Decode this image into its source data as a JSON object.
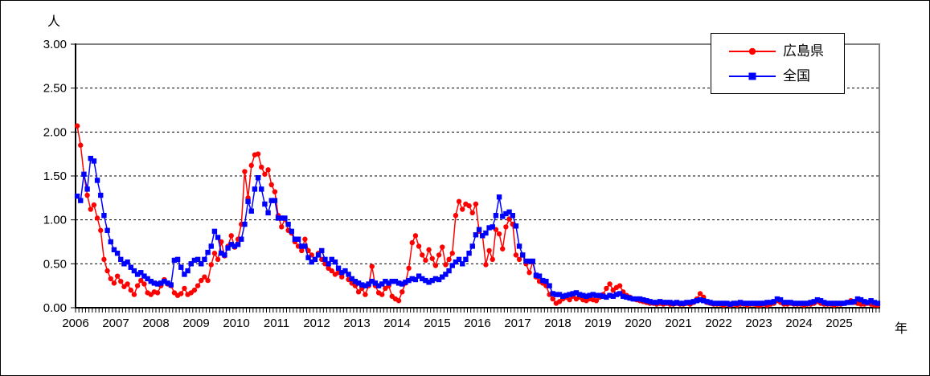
{
  "chart_data": {
    "type": "line",
    "title": "",
    "ylabel": "人",
    "xlabel": "年",
    "ylim": [
      0,
      3.0
    ],
    "y_tick_labels": [
      "0.00",
      "0.50",
      "1.00",
      "1.50",
      "2.00",
      "2.50",
      "3.00"
    ],
    "y_tick_values": [
      0,
      0.5,
      1.0,
      1.5,
      2.0,
      2.5,
      3.0
    ],
    "grid": "horizontal-dashed",
    "grid_values": [
      0.5,
      1.0,
      1.5,
      2.0,
      2.5
    ],
    "legend_position": "top-right",
    "x_tick_years": [
      "2006",
      "2007",
      "2008",
      "2009",
      "2010",
      "2011",
      "2012",
      "2013",
      "2014",
      "2015",
      "2016",
      "2017",
      "2018",
      "2019",
      "2020",
      "2021",
      "2022",
      "2023",
      "2024",
      "2025"
    ],
    "x_minor_ticks_per_year": 12,
    "frame_color": "#808080",
    "axis_color": "#000000",
    "series": [
      {
        "name": "広島県",
        "color": "#ff0000",
        "marker": "circle",
        "values": [
          2.07,
          1.85,
          1.52,
          1.28,
          1.12,
          1.17,
          1.02,
          0.88,
          0.55,
          0.42,
          0.33,
          0.28,
          0.36,
          0.3,
          0.24,
          0.27,
          0.2,
          0.15,
          0.25,
          0.31,
          0.27,
          0.17,
          0.15,
          0.18,
          0.17,
          0.25,
          0.32,
          0.27,
          0.25,
          0.17,
          0.14,
          0.16,
          0.22,
          0.15,
          0.17,
          0.2,
          0.25,
          0.31,
          0.35,
          0.31,
          0.49,
          0.62,
          0.55,
          0.75,
          0.59,
          0.7,
          0.82,
          0.69,
          0.78,
          0.95,
          1.55,
          1.25,
          1.62,
          1.74,
          1.75,
          1.6,
          1.52,
          1.57,
          1.4,
          1.32,
          1.05,
          0.92,
          1.01,
          0.88,
          0.85,
          0.75,
          0.7,
          0.65,
          0.78,
          0.65,
          0.6,
          0.55,
          0.62,
          0.55,
          0.5,
          0.45,
          0.42,
          0.38,
          0.4,
          0.35,
          0.42,
          0.32,
          0.28,
          0.25,
          0.18,
          0.22,
          0.15,
          0.25,
          0.47,
          0.25,
          0.17,
          0.15,
          0.22,
          0.25,
          0.13,
          0.1,
          0.08,
          0.18,
          0.28,
          0.45,
          0.74,
          0.82,
          0.7,
          0.6,
          0.54,
          0.66,
          0.56,
          0.48,
          0.6,
          0.69,
          0.49,
          0.55,
          0.62,
          1.05,
          1.21,
          1.12,
          1.18,
          1.16,
          1.08,
          1.18,
          0.87,
          0.82,
          0.49,
          0.65,
          0.55,
          0.89,
          0.84,
          0.67,
          0.92,
          1.01,
          0.95,
          0.6,
          0.55,
          0.6,
          0.5,
          0.4,
          0.52,
          0.35,
          0.3,
          0.28,
          0.25,
          0.15,
          0.1,
          0.05,
          0.07,
          0.1,
          0.12,
          0.09,
          0.13,
          0.1,
          0.12,
          0.09,
          0.08,
          0.1,
          0.09,
          0.08,
          0.12,
          0.15,
          0.22,
          0.27,
          0.2,
          0.23,
          0.25,
          0.18,
          0.14,
          0.12,
          0.1,
          0.09,
          0.08,
          0.07,
          0.06,
          0.05,
          0.05,
          0.04,
          0.05,
          0.04,
          0.05,
          0.04,
          0.04,
          0.05,
          0.04,
          0.04,
          0.05,
          0.04,
          0.06,
          0.1,
          0.16,
          0.12,
          0.06,
          0.05,
          0.04,
          0.04,
          0.04,
          0.03,
          0.04,
          0.03,
          0.04,
          0.03,
          0.04,
          0.04,
          0.03,
          0.04,
          0.04,
          0.03,
          0.03,
          0.04,
          0.03,
          0.04,
          0.05,
          0.08,
          0.06,
          0.04,
          0.04,
          0.05,
          0.04,
          0.04,
          0.04,
          0.03,
          0.04,
          0.04,
          0.05,
          0.07,
          0.05,
          0.04,
          0.04,
          0.04,
          0.03,
          0.04,
          0.04,
          0.05,
          0.06,
          0.08,
          0.06,
          0.05,
          0.04,
          0.04,
          0.05,
          0.04,
          0.03,
          0.03
        ]
      },
      {
        "name": "全国",
        "color": "#0000ff",
        "marker": "square",
        "values": [
          1.27,
          1.22,
          1.52,
          1.35,
          1.7,
          1.67,
          1.45,
          1.28,
          1.05,
          0.88,
          0.75,
          0.66,
          0.62,
          0.55,
          0.5,
          0.52,
          0.46,
          0.42,
          0.38,
          0.4,
          0.36,
          0.33,
          0.3,
          0.28,
          0.27,
          0.28,
          0.3,
          0.28,
          0.26,
          0.54,
          0.55,
          0.46,
          0.38,
          0.42,
          0.5,
          0.54,
          0.55,
          0.5,
          0.55,
          0.63,
          0.7,
          0.87,
          0.8,
          0.62,
          0.6,
          0.68,
          0.72,
          0.7,
          0.72,
          0.78,
          0.95,
          1.21,
          1.1,
          1.35,
          1.48,
          1.35,
          1.18,
          1.08,
          1.22,
          1.22,
          1.02,
          1.02,
          1.02,
          0.95,
          0.87,
          0.78,
          0.78,
          0.7,
          0.7,
          0.57,
          0.52,
          0.55,
          0.6,
          0.65,
          0.55,
          0.5,
          0.55,
          0.52,
          0.45,
          0.4,
          0.42,
          0.38,
          0.33,
          0.3,
          0.28,
          0.26,
          0.25,
          0.27,
          0.3,
          0.28,
          0.25,
          0.27,
          0.3,
          0.28,
          0.3,
          0.3,
          0.28,
          0.27,
          0.29,
          0.31,
          0.33,
          0.32,
          0.36,
          0.33,
          0.31,
          0.29,
          0.31,
          0.33,
          0.32,
          0.35,
          0.38,
          0.42,
          0.48,
          0.52,
          0.55,
          0.5,
          0.55,
          0.62,
          0.7,
          0.83,
          0.89,
          0.82,
          0.85,
          0.91,
          0.92,
          1.05,
          1.26,
          1.04,
          1.07,
          1.09,
          1.05,
          0.93,
          0.7,
          0.6,
          0.53,
          0.53,
          0.53,
          0.37,
          0.36,
          0.31,
          0.3,
          0.25,
          0.16,
          0.15,
          0.15,
          0.13,
          0.14,
          0.15,
          0.16,
          0.17,
          0.15,
          0.14,
          0.13,
          0.14,
          0.15,
          0.14,
          0.14,
          0.13,
          0.12,
          0.14,
          0.13,
          0.15,
          0.16,
          0.13,
          0.12,
          0.11,
          0.1,
          0.1,
          0.1,
          0.09,
          0.08,
          0.07,
          0.06,
          0.06,
          0.07,
          0.06,
          0.06,
          0.06,
          0.05,
          0.06,
          0.05,
          0.05,
          0.06,
          0.06,
          0.07,
          0.08,
          0.09,
          0.08,
          0.07,
          0.06,
          0.05,
          0.05,
          0.05,
          0.05,
          0.05,
          0.04,
          0.05,
          0.05,
          0.06,
          0.05,
          0.05,
          0.05,
          0.05,
          0.05,
          0.05,
          0.05,
          0.06,
          0.06,
          0.07,
          0.1,
          0.09,
          0.06,
          0.06,
          0.06,
          0.05,
          0.05,
          0.05,
          0.05,
          0.05,
          0.06,
          0.07,
          0.09,
          0.08,
          0.06,
          0.05,
          0.05,
          0.05,
          0.05,
          0.05,
          0.05,
          0.06,
          0.06,
          0.07,
          0.1,
          0.09,
          0.07,
          0.06,
          0.08,
          0.06,
          0.05
        ]
      }
    ]
  }
}
